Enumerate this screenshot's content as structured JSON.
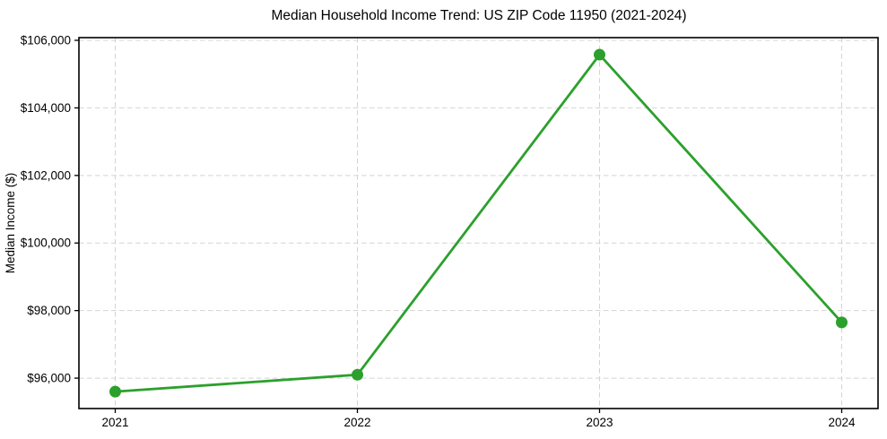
{
  "chart_data": {
    "type": "line",
    "title": "Median Household Income Trend: US ZIP Code 11950 (2021-2024)",
    "xlabel": "",
    "ylabel": "Median Income ($)",
    "x": [
      2021,
      2022,
      2023,
      2024
    ],
    "xtick_labels": [
      "2021",
      "2022",
      "2023",
      "2024"
    ],
    "series": [
      {
        "name": "Median Household Income",
        "values": [
          95600,
          96100,
          105575,
          97650
        ]
      }
    ],
    "yticks": [
      96000,
      98000,
      100000,
      102000,
      104000,
      106000
    ],
    "ytick_labels": [
      "$96,000",
      "$98,000",
      "$100,000",
      "$102,000",
      "$104,000",
      "$106,000"
    ],
    "xlim": [
      2020.85,
      2024.15
    ],
    "ylim": [
      95100,
      106080
    ],
    "grid": true,
    "grid_style": "dashed",
    "legend": "none",
    "style": {
      "line_color": "#2ca02c",
      "marker_color": "#2ca02c",
      "marker_shape": "circle",
      "grid_color": "#d3d3d3",
      "axis_color": "#000000",
      "text_color": "#000000",
      "background_color": "#ffffff"
    }
  }
}
